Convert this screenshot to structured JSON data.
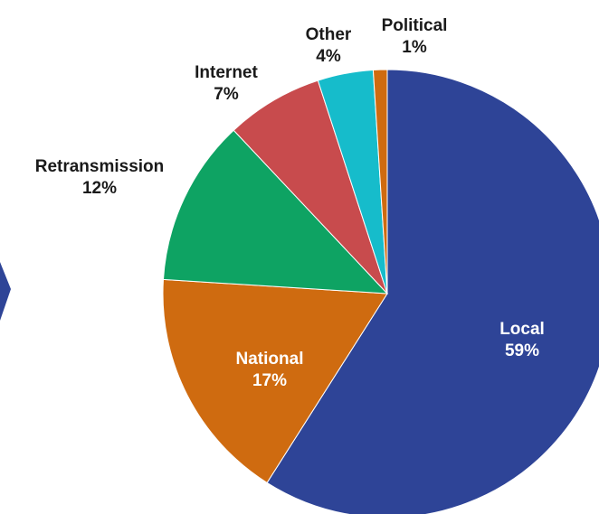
{
  "chart_data": {
    "type": "pie",
    "title": "",
    "slices": [
      {
        "label": "Local",
        "value": 59,
        "display": "59%",
        "color": "#2E4497",
        "label_inside": true
      },
      {
        "label": "National",
        "value": 17,
        "display": "17%",
        "color": "#CF6B10",
        "label_inside": true
      },
      {
        "label": "Retransmission",
        "value": 12,
        "display": "12%",
        "color": "#0EA363",
        "label_inside": false
      },
      {
        "label": "Internet",
        "value": 7,
        "display": "7%",
        "color": "#C84B4D",
        "label_inside": false
      },
      {
        "label": "Other",
        "value": 4,
        "display": "4%",
        "color": "#16BCCB",
        "label_inside": false
      },
      {
        "label": "Political",
        "value": 1,
        "display": "1%",
        "color": "#CF6B10",
        "label_inside": false
      }
    ],
    "start_angle": "12 o'clock",
    "direction": "clockwise",
    "legend": "none"
  },
  "decoration": {
    "edge_shape_color": "#2E4497"
  }
}
